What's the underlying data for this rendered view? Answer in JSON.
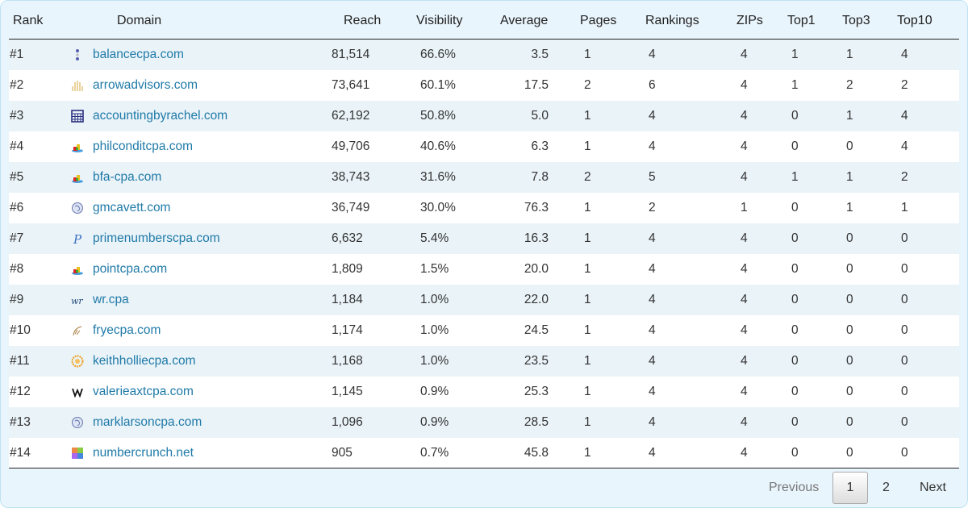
{
  "columns": {
    "rank": "Rank",
    "domain": "Domain",
    "reach": "Reach",
    "visibility": "Visibility",
    "average": "Average",
    "pages": "Pages",
    "rankings": "Rankings",
    "zips": "ZIPs",
    "top1": "Top1",
    "top3": "Top3",
    "top10": "Top10"
  },
  "rows": [
    {
      "rank": "#1",
      "icon": "dots-icon",
      "domain": "balancecpa.com",
      "reach": "81,514",
      "visibility": "66.6%",
      "average": "3.5",
      "pages": "1",
      "rankings": "4",
      "zips": "4",
      "top1": "1",
      "top3": "1",
      "top10": "4"
    },
    {
      "rank": "#2",
      "icon": "pillars-icon",
      "domain": "arrowadvisors.com",
      "reach": "73,641",
      "visibility": "60.1%",
      "average": "17.5",
      "pages": "2",
      "rankings": "6",
      "zips": "4",
      "top1": "1",
      "top3": "2",
      "top10": "2"
    },
    {
      "rank": "#3",
      "icon": "calculator-icon",
      "domain": "accountingbyrachel.com",
      "reach": "62,192",
      "visibility": "50.8%",
      "average": "5.0",
      "pages": "1",
      "rankings": "4",
      "zips": "4",
      "top1": "0",
      "top3": "1",
      "top10": "4"
    },
    {
      "rank": "#4",
      "icon": "blocks-icon",
      "domain": "philconditcpa.com",
      "reach": "49,706",
      "visibility": "40.6%",
      "average": "6.3",
      "pages": "1",
      "rankings": "4",
      "zips": "4",
      "top1": "0",
      "top3": "0",
      "top10": "4"
    },
    {
      "rank": "#5",
      "icon": "blocks-icon",
      "domain": "bfa-cpa.com",
      "reach": "38,743",
      "visibility": "31.6%",
      "average": "7.8",
      "pages": "2",
      "rankings": "5",
      "zips": "4",
      "top1": "1",
      "top3": "1",
      "top10": "2"
    },
    {
      "rank": "#6",
      "icon": "globe-icon",
      "domain": "gmcavett.com",
      "reach": "36,749",
      "visibility": "30.0%",
      "average": "76.3",
      "pages": "1",
      "rankings": "2",
      "zips": "1",
      "top1": "0",
      "top3": "1",
      "top10": "1"
    },
    {
      "rank": "#7",
      "icon": "p-letter-icon",
      "domain": "primenumberscpa.com",
      "reach": "6,632",
      "visibility": "5.4%",
      "average": "16.3",
      "pages": "1",
      "rankings": "4",
      "zips": "4",
      "top1": "0",
      "top3": "0",
      "top10": "0"
    },
    {
      "rank": "#8",
      "icon": "blocks-icon",
      "domain": "pointcpa.com",
      "reach": "1,809",
      "visibility": "1.5%",
      "average": "20.0",
      "pages": "1",
      "rankings": "4",
      "zips": "4",
      "top1": "0",
      "top3": "0",
      "top10": "0"
    },
    {
      "rank": "#9",
      "icon": "wr-logo-icon",
      "domain": "wr.cpa",
      "reach": "1,184",
      "visibility": "1.0%",
      "average": "22.0",
      "pages": "1",
      "rankings": "4",
      "zips": "4",
      "top1": "0",
      "top3": "0",
      "top10": "0"
    },
    {
      "rank": "#10",
      "icon": "feather-icon",
      "domain": "fryecpa.com",
      "reach": "1,174",
      "visibility": "1.0%",
      "average": "24.5",
      "pages": "1",
      "rankings": "4",
      "zips": "4",
      "top1": "0",
      "top3": "0",
      "top10": "0"
    },
    {
      "rank": "#11",
      "icon": "sun-icon",
      "domain": "keithholliecpa.com",
      "reach": "1,168",
      "visibility": "1.0%",
      "average": "23.5",
      "pages": "1",
      "rankings": "4",
      "zips": "4",
      "top1": "0",
      "top3": "0",
      "top10": "0"
    },
    {
      "rank": "#12",
      "icon": "wix-icon",
      "domain": "valerieaxtcpa.com",
      "reach": "1,145",
      "visibility": "0.9%",
      "average": "25.3",
      "pages": "1",
      "rankings": "4",
      "zips": "4",
      "top1": "0",
      "top3": "0",
      "top10": "0"
    },
    {
      "rank": "#13",
      "icon": "globe-icon",
      "domain": "marklarsoncpa.com",
      "reach": "1,096",
      "visibility": "0.9%",
      "average": "28.5",
      "pages": "1",
      "rankings": "4",
      "zips": "4",
      "top1": "0",
      "top3": "0",
      "top10": "0"
    },
    {
      "rank": "#14",
      "icon": "grid-icon",
      "domain": "numbercrunch.net",
      "reach": "905",
      "visibility": "0.7%",
      "average": "45.8",
      "pages": "1",
      "rankings": "4",
      "zips": "4",
      "top1": "0",
      "top3": "0",
      "top10": "0"
    }
  ],
  "pagination": {
    "previous": "Previous",
    "current": "1",
    "next_page": "2",
    "next": "Next"
  }
}
